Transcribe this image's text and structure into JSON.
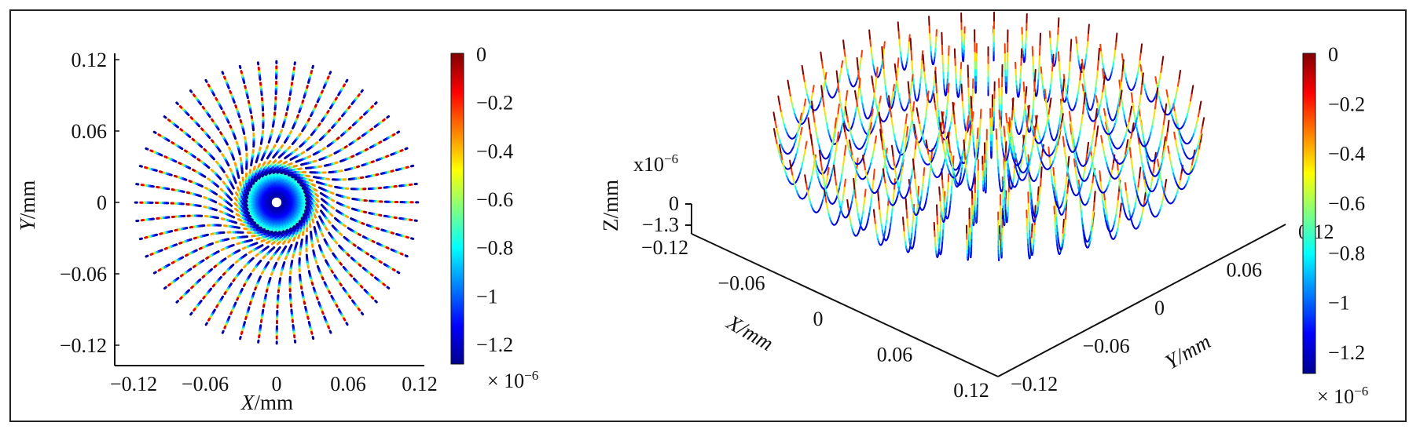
{
  "figure": {
    "left_panel": {
      "xlabel_var": "X",
      "xlabel_unit": "/mm",
      "ylabel_var": "Y",
      "ylabel_unit": "/mm",
      "colorbar_ticks": [
        "0",
        "−0.2",
        "−0.4",
        "−0.6",
        "−0.8",
        "−1",
        "−1.2"
      ],
      "colorbar_multiplier": "× 10",
      "colorbar_exponent": "−6"
    },
    "right_panel": {
      "xlabel": "X/mm",
      "ylabel": "Y/mm",
      "zlabel": "Z/mm",
      "z_multiplier": "x10",
      "z_exponent": "−6",
      "colorbar_ticks": [
        "0",
        "−0.2",
        "−0.4",
        "−0.6",
        "−0.8",
        "−1",
        "−1.2"
      ],
      "colorbar_multiplier": "× 10",
      "colorbar_exponent": "−6"
    }
  },
  "colormap": [
    "#00008f",
    "#0000ff",
    "#0080ff",
    "#00ffff",
    "#80ff80",
    "#ffff00",
    "#ff8000",
    "#ff0000",
    "#800000"
  ],
  "chart_data": [
    {
      "type": "scatter",
      "description_of_marks": "radial dashed segments in a spiral pattern, colored by Z displacement",
      "xlabel": "X/mm",
      "ylabel": "Y/mm",
      "xlim": [
        -0.12,
        0.12
      ],
      "ylim": [
        -0.12,
        0.12
      ],
      "x_ticks": [
        "−0.12",
        "−0.06",
        "0",
        "0.06",
        "0.12"
      ],
      "y_ticks": [
        "0.12",
        "0.06",
        "0",
        "−0.06",
        "−0.12"
      ],
      "x_tick_values": [
        -0.12,
        -0.06,
        0,
        0.06,
        0.12
      ],
      "y_tick_values": [
        0.12,
        0.06,
        0,
        -0.06,
        -0.12
      ],
      "radial_line_count": 48,
      "colorbar_range": [
        -1.2e-06,
        0
      ],
      "colorbar_tick_values": [
        0,
        -0.2,
        -0.4,
        -0.6,
        -0.8,
        -1,
        -1.2
      ]
    },
    {
      "type": "scatter",
      "description_of_marks": "3D bowl-shaped traces in concentric rings, colored by Z displacement",
      "xlabel": "X/mm",
      "ylabel": "Y/mm",
      "zlabel": "Z/mm",
      "xlim": [
        -0.12,
        0.12
      ],
      "ylim": [
        -0.12,
        0.12
      ],
      "zlim": [
        -1.3e-06,
        0
      ],
      "x_ticks": [
        "−0.12",
        "−0.06",
        "0",
        "0.06",
        "0.12"
      ],
      "y_ticks": [
        "−0.12",
        "−0.06",
        "0",
        "0.06",
        "0.12"
      ],
      "z_ticks": [
        "0",
        "−1.3"
      ],
      "x_tick_values": [
        -0.12,
        -0.06,
        0,
        0.06,
        0.12
      ],
      "y_tick_values": [
        -0.12,
        -0.06,
        0,
        0.06,
        0.12
      ],
      "z_tick_values": [
        0,
        -1.3
      ],
      "colorbar_range": [
        -1.2e-06,
        0
      ],
      "colorbar_tick_values": [
        0,
        -0.2,
        -0.4,
        -0.6,
        -0.8,
        -1,
        -1.2
      ]
    }
  ]
}
